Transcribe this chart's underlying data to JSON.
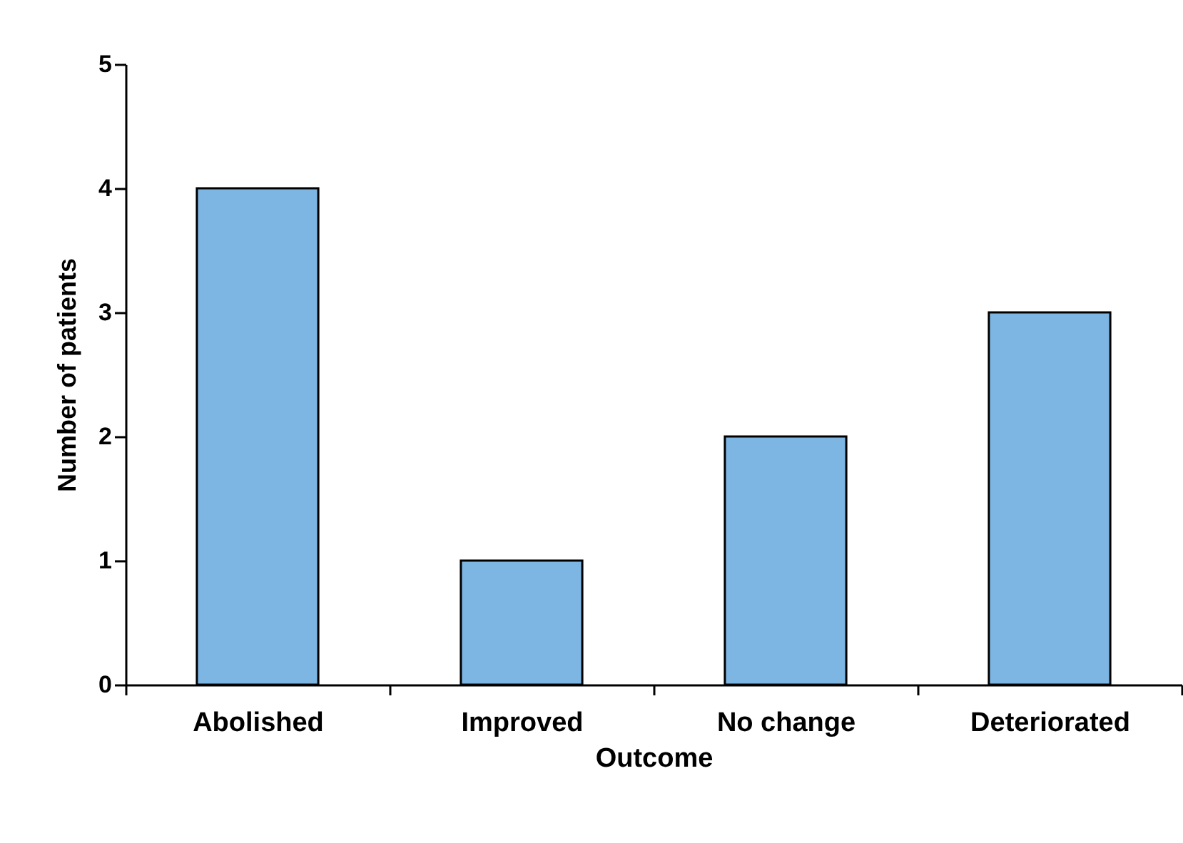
{
  "chart_data": {
    "type": "bar",
    "xlabel": "Outcome",
    "ylabel": "Number of patients",
    "categories": [
      "Abolished",
      "Improved",
      "No change",
      "Deteriorated"
    ],
    "values": [
      4,
      1,
      2,
      3
    ],
    "color": "#7db5e3",
    "ylim": [
      0,
      5
    ],
    "yticks": [
      0,
      1,
      2,
      3,
      4,
      5
    ],
    "grid": false
  }
}
